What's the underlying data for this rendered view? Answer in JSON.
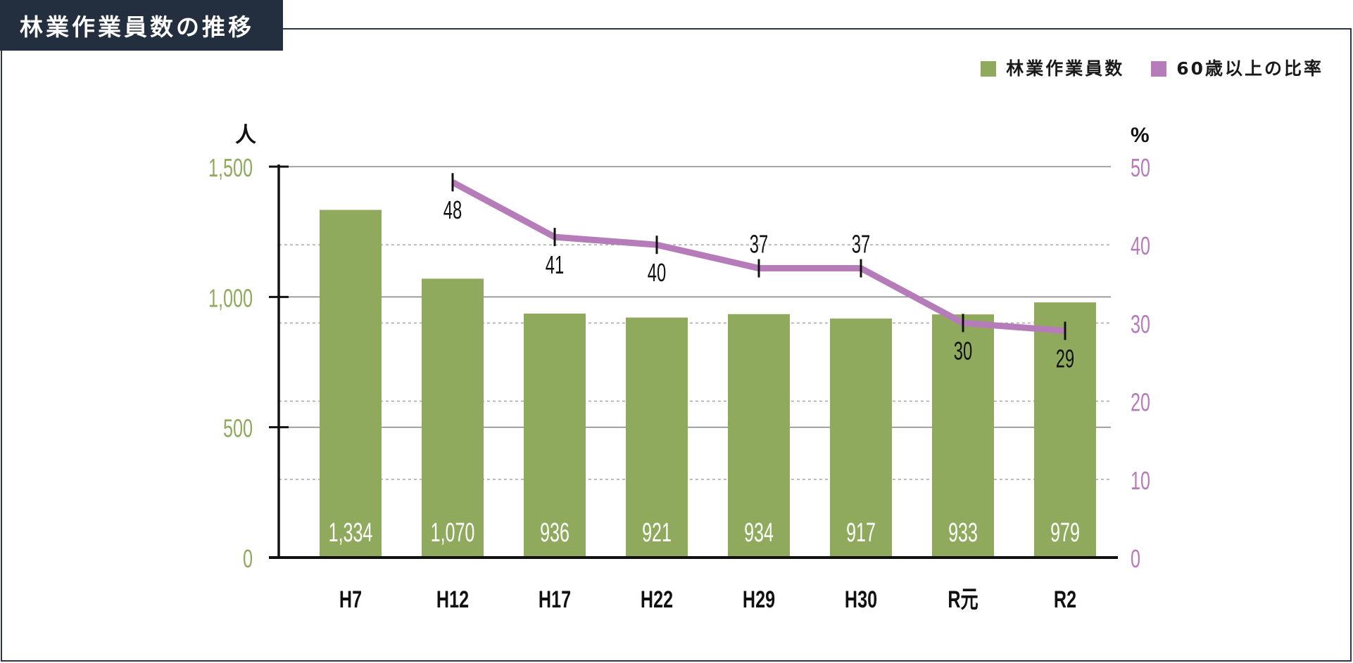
{
  "colors": {
    "title_bg": "#232e3e",
    "frame": "#2b3546",
    "grid": "#8a8a8a",
    "grid_dashed": "#a0a0a0",
    "axis": "#111111"
  },
  "chart_data": {
    "type": "bar",
    "title": "林業作業員数の推移",
    "categories": [
      "H7",
      "H12",
      "H17",
      "H22",
      "H29",
      "H30",
      "R元",
      "R2"
    ],
    "series": [
      {
        "name": "林業作業員数",
        "type": "bar",
        "axis": "left",
        "color": "#8faa5c",
        "values": [
          1334,
          1070,
          936,
          921,
          934,
          917,
          933,
          979
        ],
        "value_labels": [
          "1,334",
          "1,070",
          "936",
          "921",
          "934",
          "917",
          "933",
          "979"
        ]
      },
      {
        "name": "60歳以上の比率",
        "type": "line",
        "axis": "right",
        "color": "#b67bb9",
        "values": [
          null,
          48,
          41,
          40,
          37,
          37,
          30,
          29
        ],
        "value_labels": [
          null,
          "48",
          "41",
          "40",
          "37",
          "37",
          "30",
          "29"
        ],
        "label_positions": [
          null,
          "below",
          "below",
          "below",
          "above",
          "above",
          "below",
          "below"
        ]
      }
    ],
    "ylabel": "人",
    "y2label": "%",
    "ylim": [
      0,
      1500
    ],
    "y2lim": [
      0,
      50
    ],
    "yticks": [
      0,
      500,
      1000,
      1500
    ],
    "ytick_labels": [
      "0",
      "500",
      "1,000",
      "1,500"
    ],
    "y2ticks": [
      0,
      10,
      20,
      30,
      40,
      50
    ],
    "y2tick_labels": [
      "0",
      "10",
      "20",
      "30",
      "40",
      "50"
    ],
    "ytick_color": "#8faa5c",
    "y2tick_color": "#b67bb9",
    "grid": true,
    "legend_position": "top-right"
  }
}
